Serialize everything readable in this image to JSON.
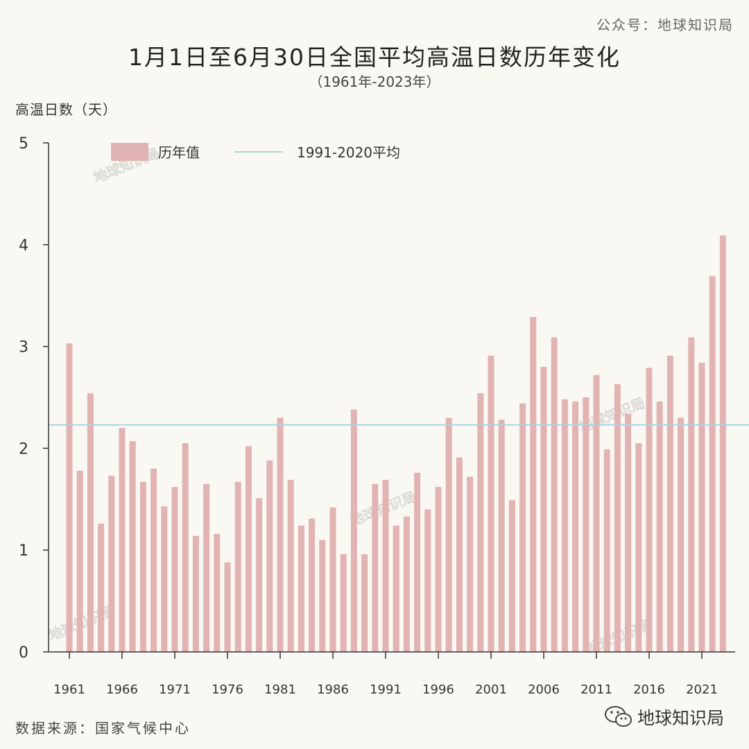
{
  "account_tag": "公众号：地球知识局",
  "source_text": "数据来源：国家气候中心",
  "brand_name": "地球知识局",
  "watermark_text": "地球知识局",
  "brand_icon": "wechat-icon",
  "chart_data": {
    "type": "bar",
    "title": "1月1日至6月30日全国平均高温日数历年变化",
    "subtitle": "（1961年-2023年）",
    "ylabel": "高温日数（天）",
    "xlabel": "",
    "ylim": [
      0,
      5
    ],
    "yticks": [
      0,
      1,
      2,
      3,
      4,
      5
    ],
    "xtick_labels": [
      "1961",
      "1966",
      "1971",
      "1976",
      "1981",
      "1986",
      "1991",
      "1996",
      "2001",
      "2006",
      "2011",
      "2016",
      "2021"
    ],
    "legend": {
      "bar_label": "历年值",
      "line_label": "1991-2020平均",
      "position": "top-left"
    },
    "bar_color": "#e2b3b3",
    "line_color": "#a8d4e2",
    "reference_value": 2.23,
    "categories": [
      "1961",
      "1962",
      "1963",
      "1964",
      "1965",
      "1966",
      "1967",
      "1968",
      "1969",
      "1970",
      "1971",
      "1972",
      "1973",
      "1974",
      "1975",
      "1976",
      "1977",
      "1978",
      "1979",
      "1980",
      "1981",
      "1982",
      "1983",
      "1984",
      "1985",
      "1986",
      "1987",
      "1988",
      "1989",
      "1990",
      "1991",
      "1992",
      "1993",
      "1994",
      "1995",
      "1996",
      "1997",
      "1998",
      "1999",
      "2000",
      "2001",
      "2002",
      "2003",
      "2004",
      "2005",
      "2006",
      "2007",
      "2008",
      "2009",
      "2010",
      "2011",
      "2012",
      "2013",
      "2014",
      "2015",
      "2016",
      "2017",
      "2018",
      "2019",
      "2020",
      "2021",
      "2022",
      "2023"
    ],
    "values": [
      3.03,
      1.78,
      2.54,
      1.26,
      1.73,
      2.2,
      2.07,
      1.67,
      1.8,
      1.43,
      1.62,
      2.05,
      1.14,
      1.65,
      1.16,
      0.88,
      1.67,
      2.02,
      1.51,
      1.88,
      2.3,
      1.69,
      1.24,
      1.31,
      1.1,
      1.42,
      0.96,
      2.38,
      0.96,
      1.65,
      1.69,
      1.24,
      1.33,
      1.76,
      1.4,
      1.62,
      2.3,
      1.91,
      1.72,
      2.54,
      2.91,
      2.28,
      1.49,
      2.44,
      3.29,
      2.8,
      3.09,
      2.48,
      2.46,
      2.5,
      2.72,
      1.99,
      2.63,
      2.34,
      2.05,
      2.79,
      2.46,
      2.91,
      2.3,
      3.09,
      2.84,
      3.69,
      4.09
    ]
  }
}
